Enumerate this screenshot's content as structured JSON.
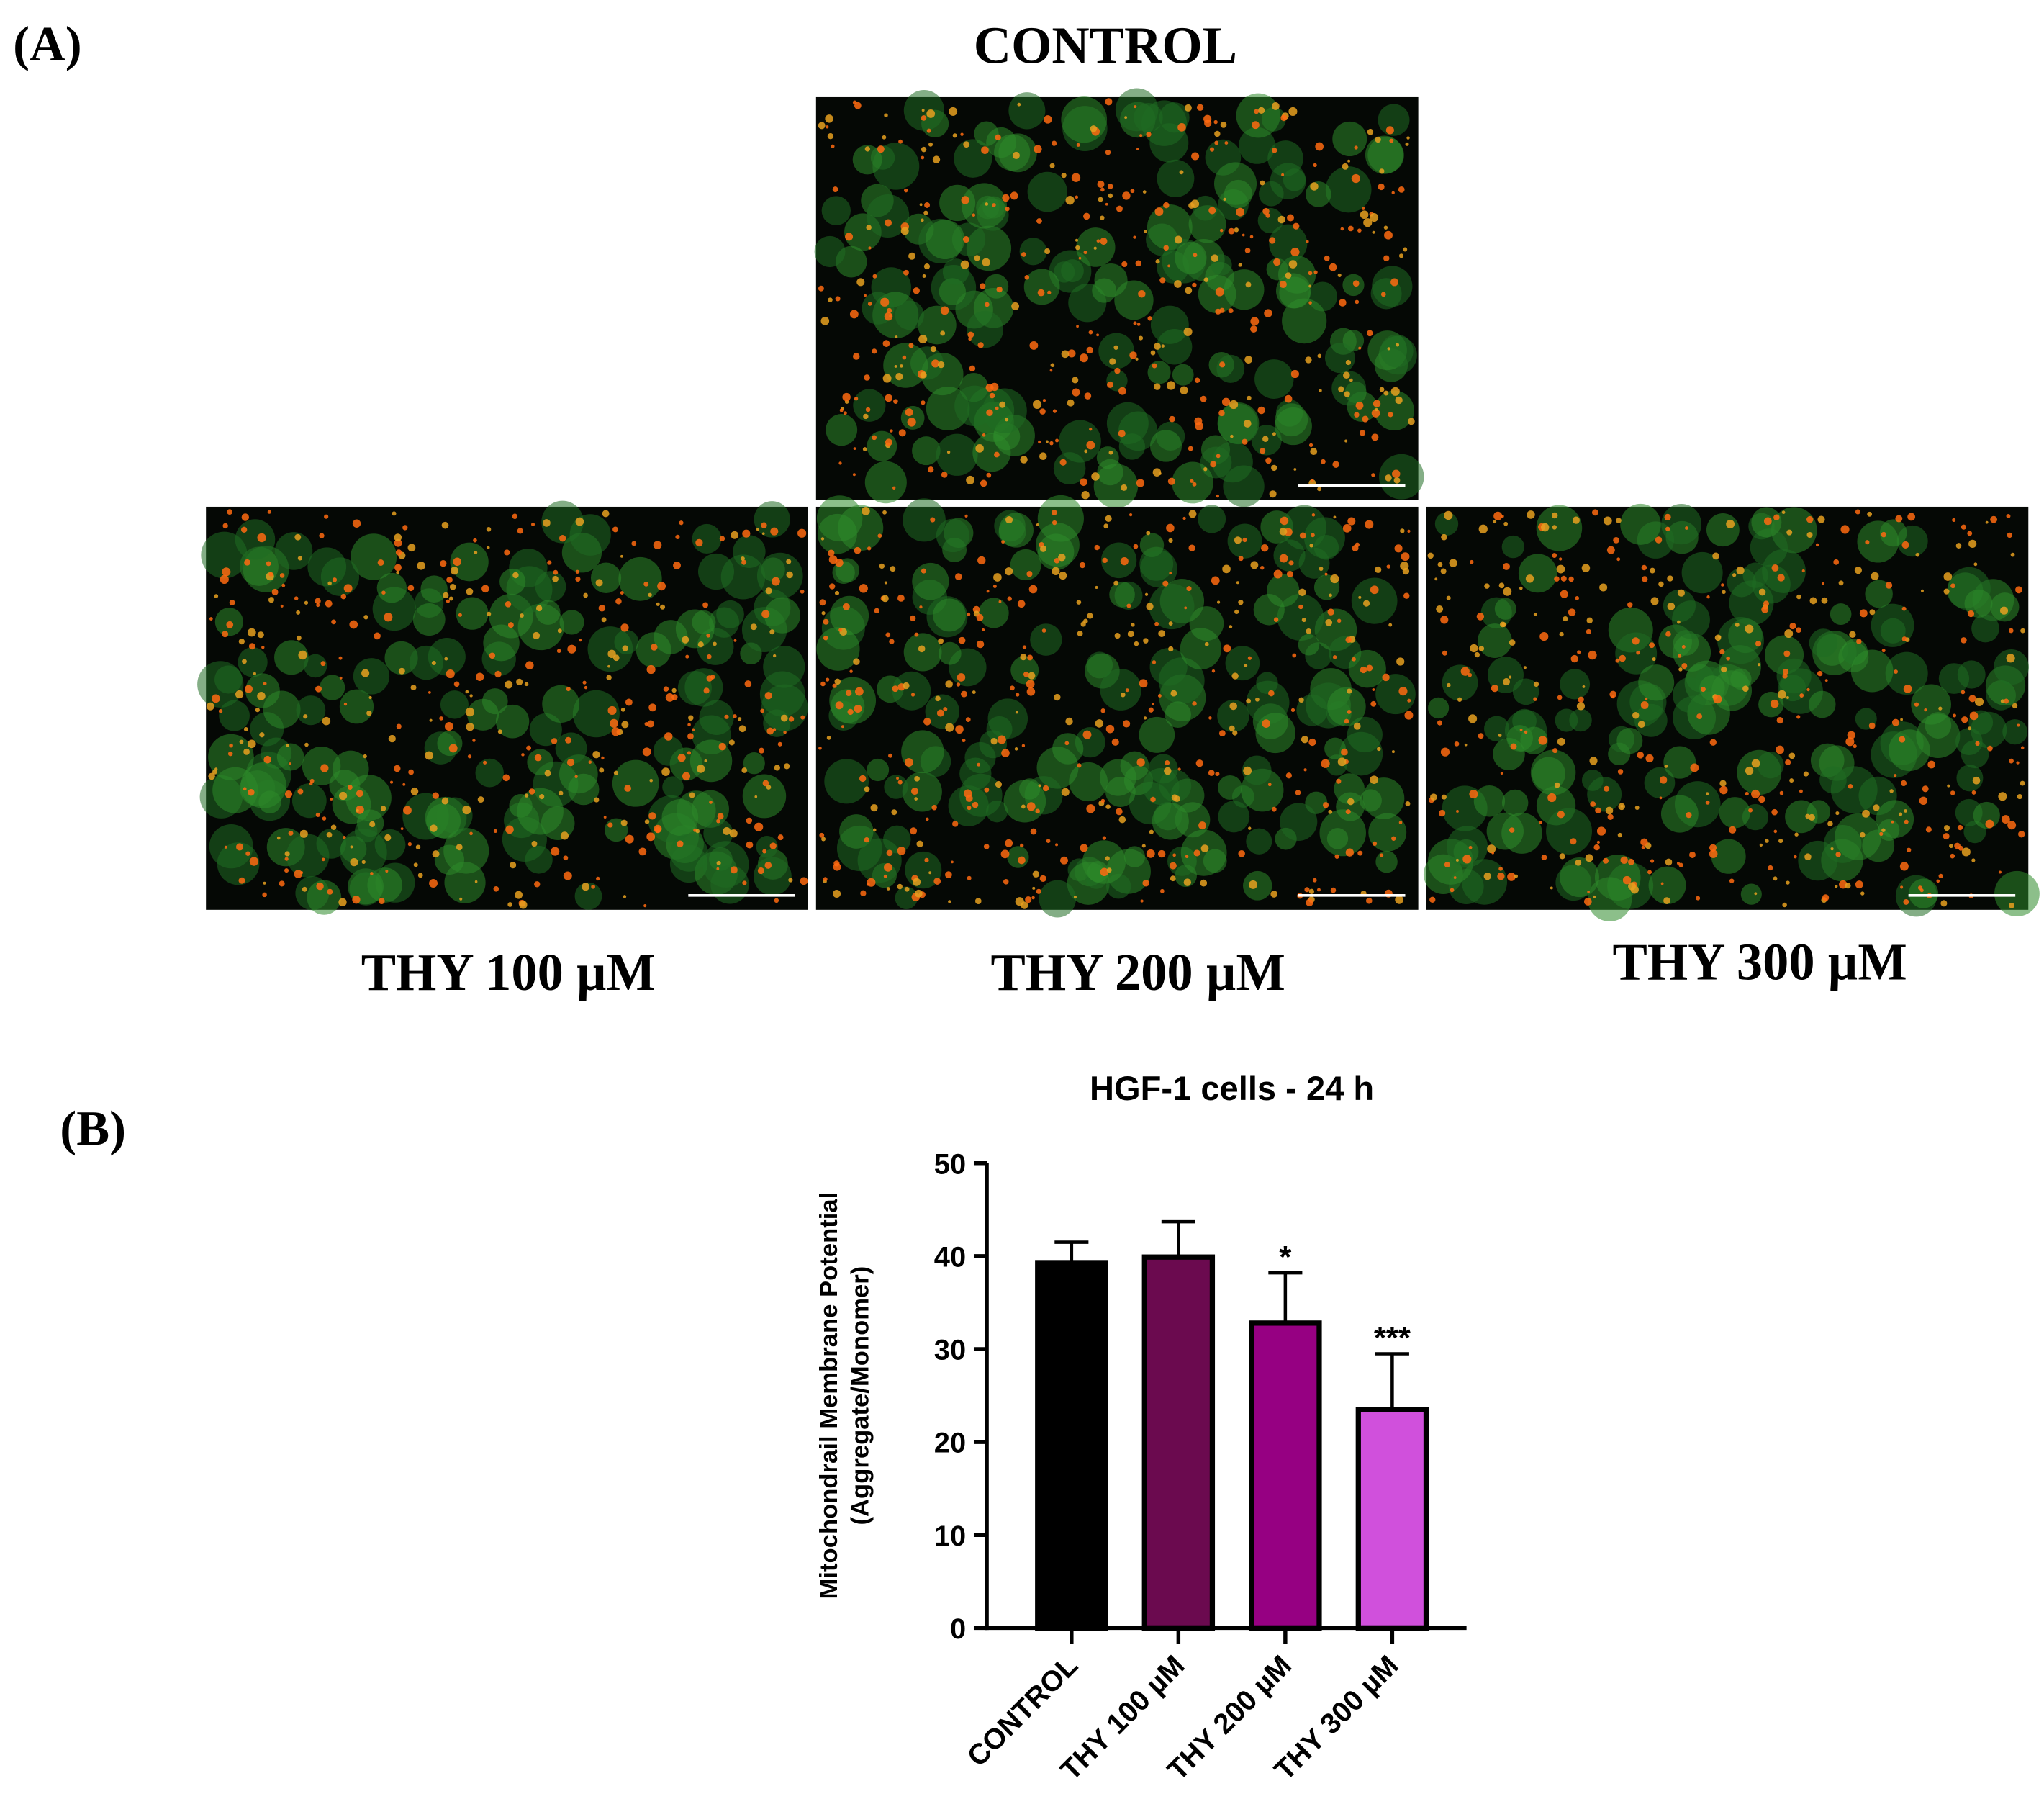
{
  "panels": {
    "a_label": "(A)",
    "b_label": "(B)",
    "images": [
      {
        "label": "CONTROL"
      },
      {
        "label": "THY 100 µM"
      },
      {
        "label": "THY 200 µM"
      },
      {
        "label": "THY 300 µM"
      }
    ]
  },
  "chart_data": {
    "type": "bar",
    "title": "HGF-1 cells - 24 h",
    "ylabel": [
      "Mitochondrail Membrane Potential",
      "(Aggregate/Monomer)"
    ],
    "categories": [
      "CONTROL",
      "THY 100 µM",
      "THY 200 µM",
      "THY 300 µM"
    ],
    "values": [
      39.3,
      39.9,
      32.8,
      23.5
    ],
    "errors": [
      2.2,
      3.8,
      5.4,
      6.0
    ],
    "annotations": [
      null,
      null,
      "*",
      "***"
    ],
    "colors": [
      "#000000",
      "#6b0a4f",
      "#960082",
      "#d050dc"
    ],
    "ylim": [
      0,
      50
    ],
    "yticks": [
      0,
      10,
      20,
      30,
      40,
      50
    ]
  }
}
